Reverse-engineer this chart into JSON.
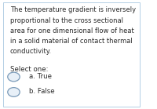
{
  "background_color": "#ffffff",
  "card_color": "#cde0f0",
  "card_edge_color": "#a8c8e0",
  "text_color": "#2a2a2a",
  "question_text_lines": [
    "The temperature gradient is inversely",
    "proportional to the cross sectional",
    "area for one dimensional flow of heat",
    "in a solid material of contact thermal",
    "conductivity."
  ],
  "select_label": "Select one:",
  "options": [
    "a. True",
    "b. False"
  ],
  "question_fontsize": 6.0,
  "option_fontsize": 6.2,
  "select_fontsize": 6.2,
  "circle_color": "#e8f0f8",
  "circle_edge_color": "#7a9ab8",
  "right_strip_color": "#b0b8c0"
}
